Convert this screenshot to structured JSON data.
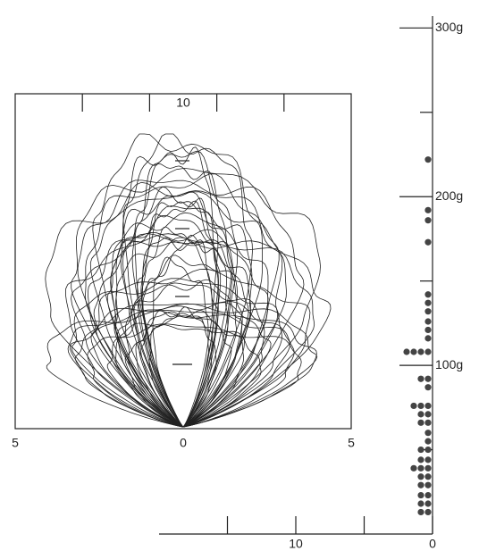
{
  "chart_data": [
    {
      "type": "contour-panel",
      "xlim": [
        -5,
        5
      ],
      "xticks": [
        {
          "value": -5,
          "label": "5"
        },
        0,
        5
      ],
      "top_ticks": [
        -3,
        -1,
        1,
        3
      ],
      "top_label": "10"
    },
    {
      "type": "dot-plot",
      "values": [
        222,
        192,
        186,
        173,
        142,
        137,
        132,
        126,
        121,
        116,
        108,
        108,
        108,
        108,
        92,
        92,
        87,
        76,
        76,
        76,
        71,
        71,
        66,
        66,
        60,
        55,
        50,
        50,
        44,
        44,
        39,
        39,
        39,
        34,
        34,
        29,
        29,
        23,
        23,
        18,
        18,
        13,
        13
      ],
      "color": "#444",
      "ylim": [
        0,
        306
      ],
      "yticks": [
        {
          "value": 100,
          "label": "100g"
        },
        {
          "value": 200,
          "label": "200g"
        },
        {
          "value": 300,
          "label": "300g"
        }
      ],
      "minor_yticks": [
        50,
        150,
        250
      ],
      "xlim": [
        20,
        0
      ],
      "xticks": [
        10,
        0
      ],
      "minor_xticks": [
        15,
        5
      ]
    }
  ]
}
